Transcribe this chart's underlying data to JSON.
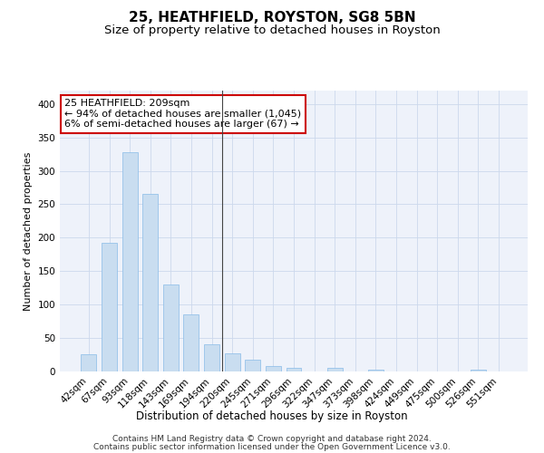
{
  "title1": "25, HEATHFIELD, ROYSTON, SG8 5BN",
  "title2": "Size of property relative to detached houses in Royston",
  "xlabel": "Distribution of detached houses by size in Royston",
  "ylabel": "Number of detached properties",
  "footer1": "Contains HM Land Registry data © Crown copyright and database right 2024.",
  "footer2": "Contains public sector information licensed under the Open Government Licence v3.0.",
  "categories": [
    "42sqm",
    "67sqm",
    "93sqm",
    "118sqm",
    "143sqm",
    "169sqm",
    "194sqm",
    "220sqm",
    "245sqm",
    "271sqm",
    "296sqm",
    "322sqm",
    "347sqm",
    "373sqm",
    "398sqm",
    "424sqm",
    "449sqm",
    "475sqm",
    "500sqm",
    "526sqm",
    "551sqm"
  ],
  "values": [
    26,
    193,
    328,
    265,
    130,
    86,
    40,
    27,
    17,
    8,
    5,
    0,
    5,
    0,
    3,
    0,
    0,
    0,
    0,
    3,
    0
  ],
  "bar_color": "#c9ddf0",
  "bar_edge_color": "#88bbe8",
  "annotation_text1": "25 HEATHFIELD: 209sqm",
  "annotation_text2": "← 94% of detached houses are smaller (1,045)",
  "annotation_text3": "6% of semi-detached houses are larger (67) →",
  "annotation_box_color": "#ffffff",
  "annotation_box_edge": "#cc0000",
  "vline_color": "#444444",
  "grid_color": "#ccd8ec",
  "background_color": "#eef2fa",
  "ylim": [
    0,
    420
  ],
  "yticks": [
    0,
    50,
    100,
    150,
    200,
    250,
    300,
    350,
    400
  ],
  "title1_fontsize": 11,
  "title2_fontsize": 9.5,
  "xlabel_fontsize": 8.5,
  "ylabel_fontsize": 8,
  "tick_fontsize": 7.5,
  "annotation_fontsize": 8,
  "footer_fontsize": 6.5,
  "vline_bin": 7
}
